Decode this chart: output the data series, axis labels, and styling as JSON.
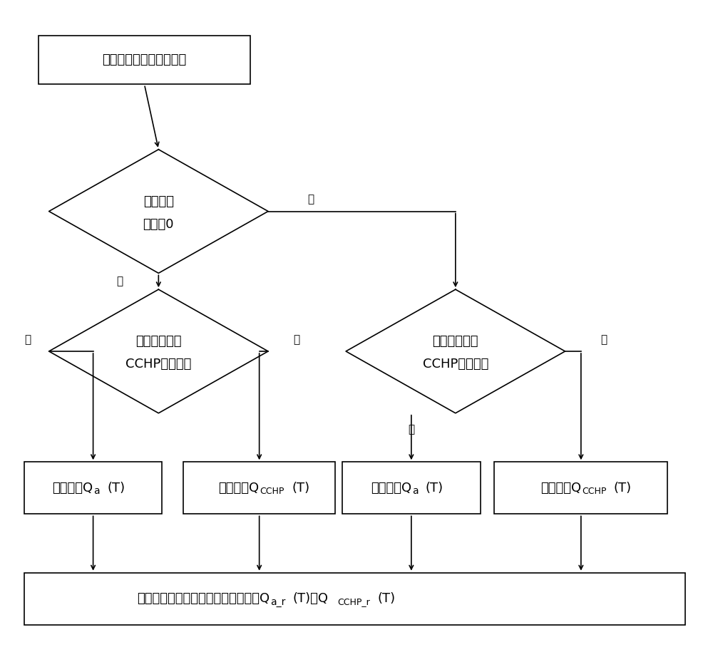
{
  "bg_color": "#ffffff",
  "border_color": "#000000",
  "text_color": "#000000",
  "line_color": "#000000",
  "font_size": 13,
  "small_font_size": 11,
  "top_box_text": "计算实时冷负荷的变化量",
  "diamond1_text_line1": "变化量是",
  "diamond1_text_line2": "否小于0",
  "diamond2_text_line1": "是否有电能从",
  "diamond2_text_line2": "CCHP流向主网",
  "diamond3_text_line1": "是否有电能从",
  "diamond3_text_line2": "CCHP流向主网",
  "label_yes": "是",
  "label_no": "否",
  "box1_prefix": "优先减小Q",
  "box1_sub": "a",
  "box1_suffix": "(T)",
  "box2_prefix": "优先减小Q",
  "box2_sub": "CCHP",
  "box2_suffix": "(T)",
  "box3_prefix": "优先减小Q",
  "box3_sub": "a",
  "box3_suffix": "(T)",
  "box4_prefix": "优先减小Q",
  "box4_sub": "CCHP",
  "box4_suffix": "(T)",
  "bottom_prefix": "根据冷负荷平衡求得实时冷负荷出力Q",
  "bottom_sub1": "a_r",
  "bottom_mid": "(T)与Q",
  "bottom_sub2": "CCHP_r",
  "bottom_suffix": "(T)"
}
